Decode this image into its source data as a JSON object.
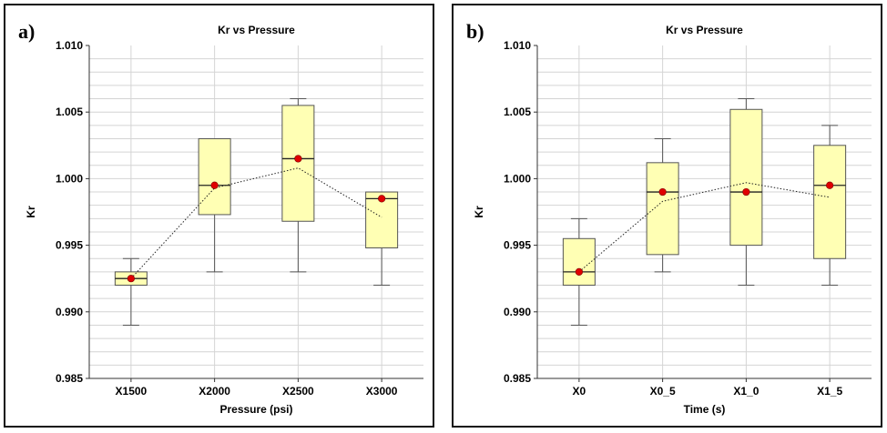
{
  "colors": {
    "box_fill": "#ffffb4",
    "box_stroke": "#555555",
    "mean_dot": "#e00000",
    "grid": "#d4d4d4",
    "axis": "#333333"
  },
  "chart_data": [
    {
      "panel_label": "a)",
      "type": "box",
      "title": "Kr vs Pressure",
      "xlabel": "Pressure (psi)",
      "ylabel": "Kr",
      "ylim": [
        0.985,
        1.01
      ],
      "yticks": [
        "0.985",
        "0.990",
        "0.995",
        "1.000",
        "1.005",
        "1.010"
      ],
      "grid": true,
      "categories": [
        "X1500",
        "X2000",
        "X2500",
        "X3000"
      ],
      "boxes": [
        {
          "min": 0.989,
          "q1": 0.992,
          "median": 0.9925,
          "q3": 0.993,
          "max": 0.994,
          "mean_dot": 0.9925,
          "trend": 0.9925
        },
        {
          "min": 0.993,
          "q1": 0.9973,
          "median": 0.9995,
          "q3": 1.003,
          "max": 1.003,
          "mean_dot": 0.9995,
          "trend": 0.9993
        },
        {
          "min": 0.993,
          "q1": 0.9968,
          "median": 1.0015,
          "q3": 1.0055,
          "max": 1.006,
          "mean_dot": 1.0015,
          "trend": 1.0008
        },
        {
          "min": 0.992,
          "q1": 0.9948,
          "median": 0.9985,
          "q3": 0.999,
          "max": 0.999,
          "mean_dot": 0.9985,
          "trend": 0.9971
        }
      ]
    },
    {
      "panel_label": "b)",
      "type": "box",
      "title": "Kr vs Pressure",
      "xlabel": "Time (s)",
      "ylabel": "Kr",
      "ylim": [
        0.985,
        1.01
      ],
      "yticks": [
        "0.985",
        "0.990",
        "0.995",
        "1.000",
        "1.005",
        "1.010"
      ],
      "grid": true,
      "categories": [
        "X0",
        "X0_5",
        "X1_0",
        "X1_5"
      ],
      "boxes": [
        {
          "min": 0.989,
          "q1": 0.992,
          "median": 0.993,
          "q3": 0.9955,
          "max": 0.997,
          "mean_dot": 0.993,
          "trend": 0.993
        },
        {
          "min": 0.993,
          "q1": 0.9943,
          "median": 0.999,
          "q3": 1.0012,
          "max": 1.003,
          "mean_dot": 0.999,
          "trend": 0.9983
        },
        {
          "min": 0.992,
          "q1": 0.995,
          "median": 0.999,
          "q3": 1.0052,
          "max": 1.006,
          "mean_dot": 0.999,
          "trend": 0.9997
        },
        {
          "min": 0.992,
          "q1": 0.994,
          "median": 0.9995,
          "q3": 1.0025,
          "max": 1.004,
          "mean_dot": 0.9995,
          "trend": 0.9986
        }
      ]
    }
  ]
}
